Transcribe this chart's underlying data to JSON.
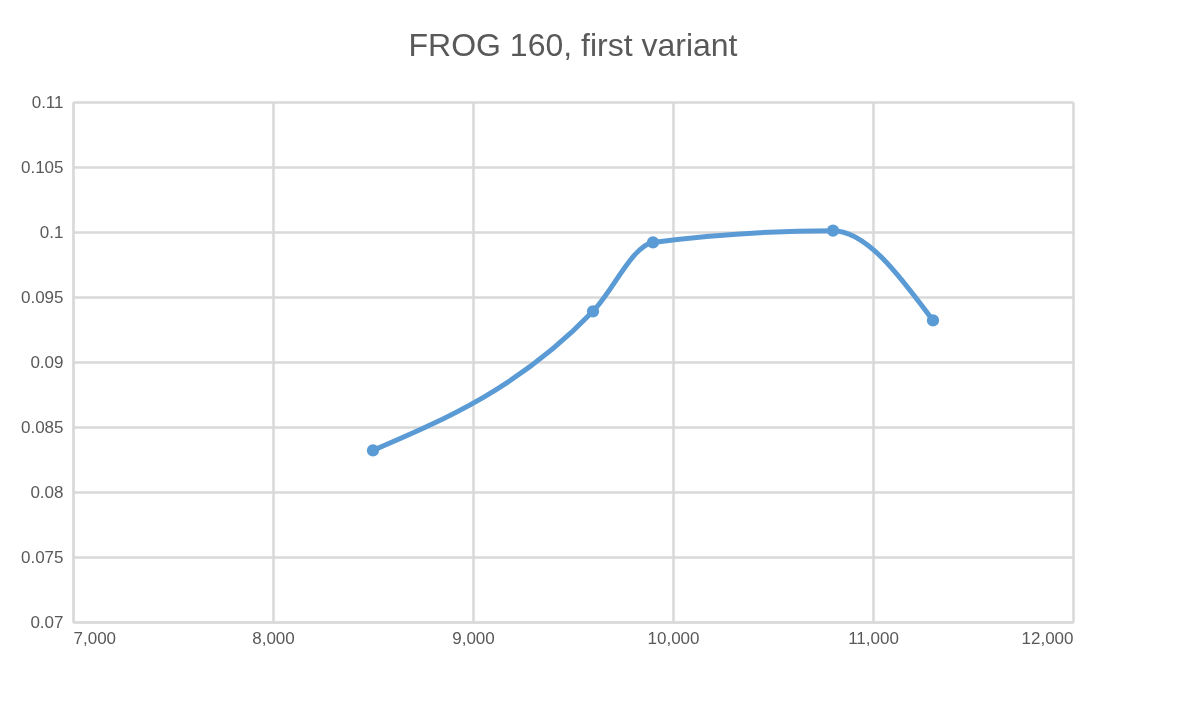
{
  "chart_data": {
    "type": "line",
    "title": "FROG 160, first variant",
    "x": [
      8500,
      9600,
      9900,
      10800,
      11300
    ],
    "series": [
      {
        "color": "#5b9bd5",
        "values": [
          0.0832,
          0.0939,
          0.0992,
          0.1001,
          0.0932
        ]
      }
    ],
    "xlim": [
      7000,
      12000
    ],
    "xticks": [
      {
        "value": 7000,
        "label": "7,000"
      },
      {
        "value": 8000,
        "label": "8,000"
      },
      {
        "value": 9000,
        "label": "9,000"
      },
      {
        "value": 10000,
        "label": "10,000"
      },
      {
        "value": 11000,
        "label": "11,000"
      },
      {
        "value": 12000,
        "label": "12,000"
      }
    ],
    "ylim": [
      0.07,
      0.11
    ],
    "yticks": [
      0.07,
      0.075,
      0.08,
      0.085,
      0.09,
      0.095,
      0.1,
      0.105,
      0.11
    ],
    "grid": true,
    "marker": "circle",
    "line_style": "solid"
  }
}
